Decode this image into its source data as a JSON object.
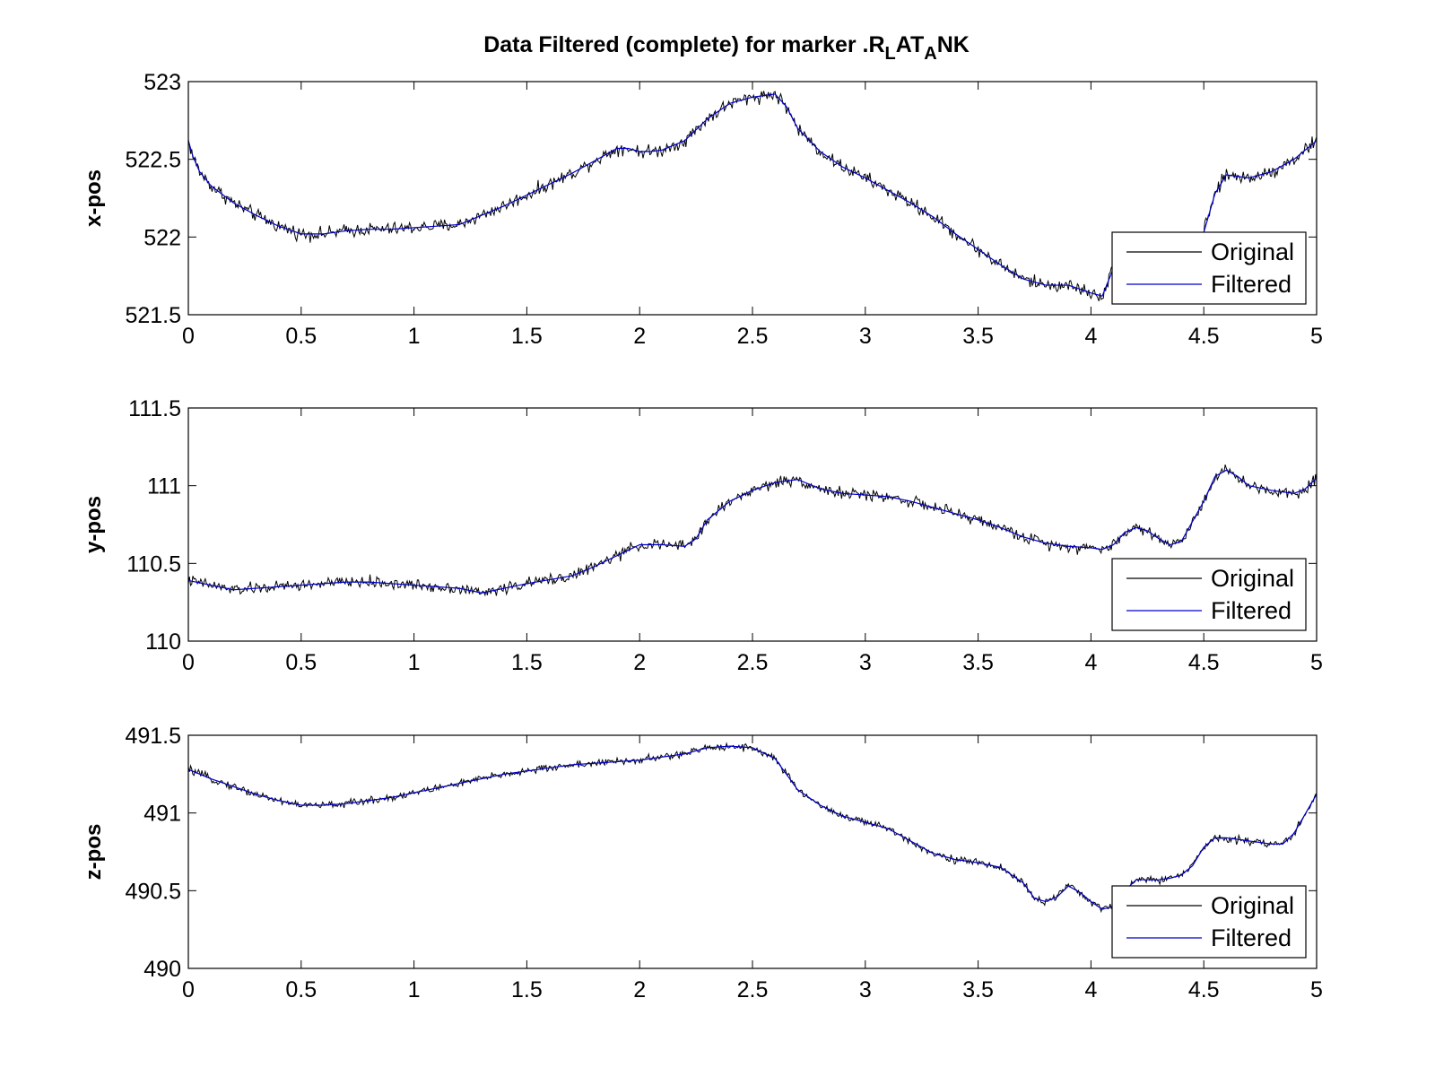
{
  "title": {
    "prefix": "Data Filtered (complete) for marker .R",
    "sub1": "L",
    "mid": "AT",
    "sub2": "A",
    "suffix": "NK"
  },
  "legend": {
    "location": "lower-right",
    "entries": [
      "Original",
      "Filtered"
    ]
  },
  "colors": {
    "original": "#000000",
    "filtered": "#0000cc",
    "axes": "#000000",
    "background": "#ffffff"
  },
  "chart_data": [
    {
      "type": "line",
      "ylabel": "x-pos",
      "xlim": [
        0,
        5
      ],
      "ylim": [
        521.5,
        523
      ],
      "xticks": [
        "0",
        "0.5",
        "1",
        "1.5",
        "2",
        "2.5",
        "3",
        "3.5",
        "4",
        "4.5",
        "5"
      ],
      "yticks": [
        "521.5",
        "522",
        "522.5",
        "523"
      ],
      "grid": false,
      "noise": 0.035,
      "series": [
        {
          "name": "Filtered",
          "x": [
            0,
            0.02,
            0.05,
            0.1,
            0.2,
            0.3,
            0.4,
            0.5,
            0.6,
            0.7,
            0.8,
            0.9,
            1.0,
            1.1,
            1.2,
            1.3,
            1.4,
            1.5,
            1.6,
            1.7,
            1.8,
            1.9,
            1.95,
            2.0,
            2.05,
            2.1,
            2.2,
            2.3,
            2.4,
            2.5,
            2.6,
            2.65,
            2.7,
            2.8,
            2.9,
            3.0,
            3.1,
            3.2,
            3.3,
            3.4,
            3.5,
            3.6,
            3.7,
            3.8,
            3.9,
            4.0,
            4.05,
            4.1,
            4.2,
            4.3,
            4.4,
            4.45,
            4.5,
            4.55,
            4.6,
            4.7,
            4.8,
            4.9,
            5.0
          ],
          "y": [
            522.62,
            522.52,
            522.42,
            522.33,
            522.22,
            522.14,
            522.07,
            522.02,
            522.02,
            522.04,
            522.05,
            522.05,
            522.06,
            522.07,
            522.08,
            522.14,
            522.2,
            522.27,
            522.34,
            522.41,
            522.49,
            522.57,
            522.57,
            522.55,
            522.55,
            522.56,
            522.62,
            522.76,
            522.86,
            522.9,
            522.92,
            522.84,
            522.7,
            522.55,
            522.45,
            522.38,
            522.3,
            522.22,
            522.13,
            522.02,
            521.92,
            521.82,
            521.73,
            521.69,
            521.69,
            521.64,
            521.62,
            521.8,
            521.8,
            521.8,
            521.8,
            521.8,
            522.03,
            522.28,
            522.4,
            522.38,
            522.42,
            522.5,
            522.62
          ]
        }
      ]
    },
    {
      "type": "line",
      "ylabel": "y-pos",
      "xlim": [
        0,
        5
      ],
      "ylim": [
        110,
        111.5
      ],
      "xticks": [
        "0",
        "0.5",
        "1",
        "1.5",
        "2",
        "2.5",
        "3",
        "3.5",
        "4",
        "4.5",
        "5"
      ],
      "yticks": [
        "110",
        "110.5",
        "111",
        "111.5"
      ],
      "grid": false,
      "noise": 0.03,
      "series": [
        {
          "name": "Filtered",
          "x": [
            0,
            0.1,
            0.2,
            0.3,
            0.5,
            0.7,
            0.8,
            1.0,
            1.2,
            1.3,
            1.5,
            1.7,
            1.8,
            1.9,
            2.0,
            2.1,
            2.2,
            2.25,
            2.3,
            2.4,
            2.5,
            2.6,
            2.7,
            2.8,
            2.9,
            3.0,
            3.1,
            3.2,
            3.3,
            3.4,
            3.5,
            3.6,
            3.7,
            3.8,
            3.9,
            4.0,
            4.05,
            4.1,
            4.15,
            4.2,
            4.25,
            4.3,
            4.35,
            4.4,
            4.5,
            4.55,
            4.6,
            4.65,
            4.7,
            4.8,
            4.9,
            4.95,
            5.0
          ],
          "y": [
            110.39,
            110.36,
            110.33,
            110.34,
            110.36,
            110.38,
            110.38,
            110.36,
            110.34,
            110.31,
            110.37,
            110.42,
            110.48,
            110.55,
            110.62,
            110.62,
            110.61,
            110.66,
            110.78,
            110.9,
            110.97,
            111.02,
            111.04,
            110.98,
            110.95,
            110.94,
            110.93,
            110.9,
            110.86,
            110.82,
            110.78,
            110.73,
            110.67,
            110.63,
            110.61,
            110.6,
            110.59,
            110.62,
            110.7,
            110.73,
            110.71,
            110.66,
            110.62,
            110.64,
            110.9,
            111.06,
            111.1,
            111.06,
            111.0,
            110.97,
            110.95,
            110.98,
            111.05
          ]
        }
      ]
    },
    {
      "type": "line",
      "ylabel": "z-pos",
      "xlim": [
        0,
        5
      ],
      "ylim": [
        490,
        491.5
      ],
      "xticks": [
        "0",
        "0.5",
        "1",
        "1.5",
        "2",
        "2.5",
        "3",
        "3.5",
        "4",
        "4.5",
        "5"
      ],
      "yticks": [
        "490",
        "490.5",
        "491",
        "491.5"
      ],
      "grid": false,
      "noise": 0.02,
      "series": [
        {
          "name": "Filtered",
          "x": [
            0,
            0.05,
            0.1,
            0.2,
            0.3,
            0.4,
            0.5,
            0.6,
            0.7,
            0.8,
            0.9,
            1.0,
            1.1,
            1.2,
            1.3,
            1.4,
            1.5,
            1.6,
            1.7,
            1.8,
            1.9,
            2.0,
            2.1,
            2.2,
            2.3,
            2.4,
            2.5,
            2.6,
            2.65,
            2.7,
            2.8,
            2.9,
            3.0,
            3.1,
            3.2,
            3.3,
            3.4,
            3.5,
            3.6,
            3.7,
            3.75,
            3.8,
            3.85,
            3.9,
            3.95,
            4.0,
            4.05,
            4.1,
            4.15,
            4.2,
            4.3,
            4.35,
            4.4,
            4.45,
            4.5,
            4.55,
            4.6,
            4.7,
            4.8,
            4.85,
            4.9,
            5.0
          ],
          "y": [
            491.28,
            491.25,
            491.22,
            491.17,
            491.12,
            491.08,
            491.05,
            491.05,
            491.06,
            491.08,
            491.1,
            491.13,
            491.16,
            491.19,
            491.22,
            491.25,
            491.27,
            491.29,
            491.31,
            491.32,
            491.33,
            491.34,
            491.36,
            491.38,
            491.42,
            491.43,
            491.42,
            491.35,
            491.25,
            491.15,
            491.05,
            490.98,
            490.94,
            490.9,
            490.82,
            490.74,
            490.7,
            490.68,
            490.65,
            490.55,
            490.45,
            490.43,
            490.46,
            490.53,
            490.49,
            490.43,
            490.38,
            490.4,
            490.5,
            490.57,
            490.57,
            490.58,
            490.6,
            490.66,
            490.78,
            490.84,
            490.84,
            490.82,
            490.8,
            490.8,
            490.87,
            491.12
          ]
        }
      ]
    }
  ]
}
